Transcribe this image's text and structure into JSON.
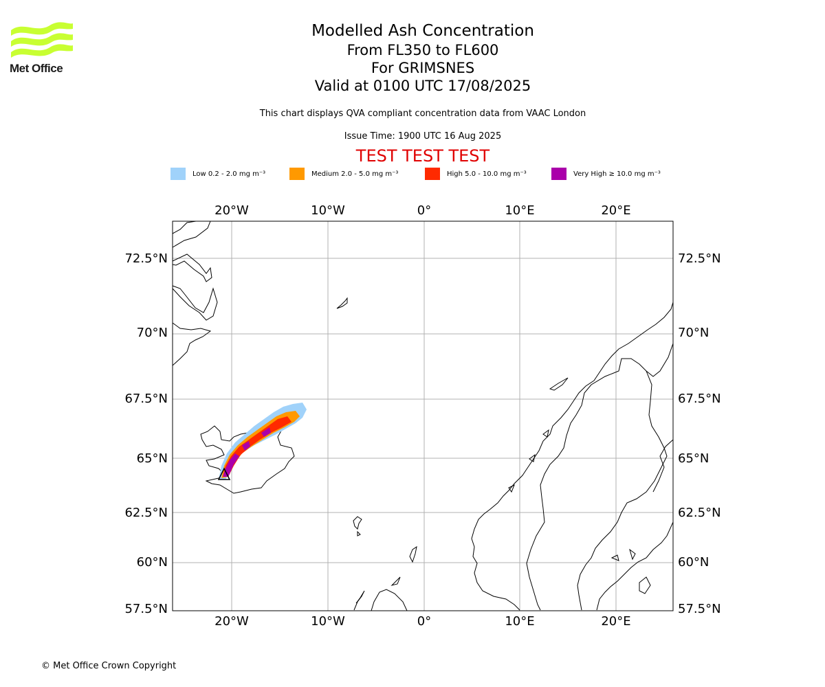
{
  "logo": {
    "name": "Met Office"
  },
  "header": {
    "title": "Modelled Ash Concentration",
    "levels": "From FL350 to FL600",
    "volcano": "For GRIMSNES",
    "valid": "Valid at 0100 UTC 17/08/2025",
    "compliance": "This chart displays QVA compliant concentration data from VAAC London",
    "issue_time": "Issue Time: 1900 UTC 16 Aug 2025",
    "test_banner": "TEST TEST TEST"
  },
  "legend": [
    {
      "label": "Low 0.2 - 2.0 mg m⁻³",
      "color": "#a0d2fa"
    },
    {
      "label": "Medium 2.0 - 5.0 mg m⁻³",
      "color": "#ff9900"
    },
    {
      "label": "High 5.0 - 10.0 mg m⁻³",
      "color": "#ff2a00"
    },
    {
      "label": "Very High ≥ 10.0 mg m⁻³",
      "color": "#aa00aa"
    }
  ],
  "map": {
    "lon_ticks": [
      "20°W",
      "10°W",
      "0°",
      "10°E",
      "20°E"
    ],
    "lat_ticks": [
      "72.5°N",
      "70°N",
      "67.5°N",
      "65°N",
      "62.5°N",
      "60°N",
      "57.5°N"
    ],
    "volcano_marker": "triangle"
  },
  "footer": {
    "copyright": "© Met Office Crown Copyright"
  }
}
